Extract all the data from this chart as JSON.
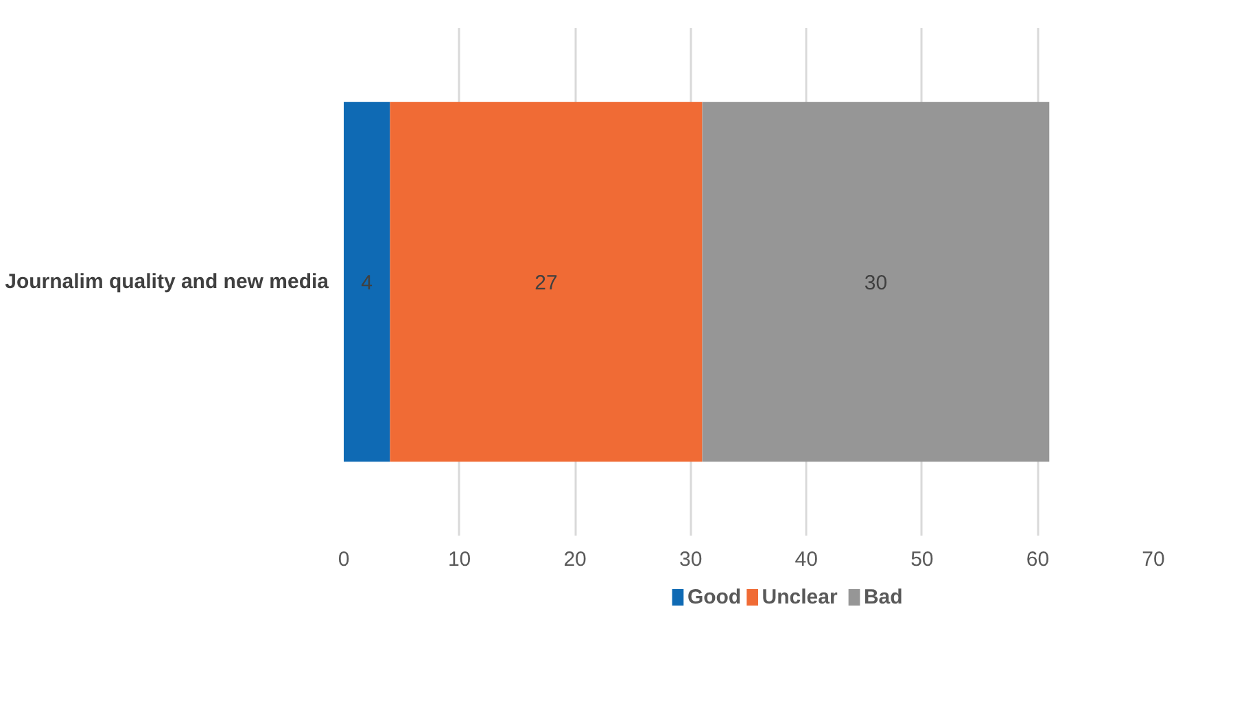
{
  "chart_data": {
    "type": "bar",
    "orientation": "horizontal",
    "stacked": true,
    "categories": [
      "Journalim quality and new media"
    ],
    "series": [
      {
        "name": "Good",
        "color": "#0f6ab4",
        "values": [
          4
        ]
      },
      {
        "name": "Unclear",
        "color": "#f06b35",
        "values": [
          27
        ]
      },
      {
        "name": "Bad",
        "color": "#969696",
        "values": [
          30
        ]
      }
    ],
    "xlim": [
      0,
      70
    ],
    "xticks": [
      0,
      10,
      20,
      30,
      40,
      50,
      60,
      70
    ],
    "grid": "x",
    "legend": "bottom",
    "data_labels": true
  }
}
